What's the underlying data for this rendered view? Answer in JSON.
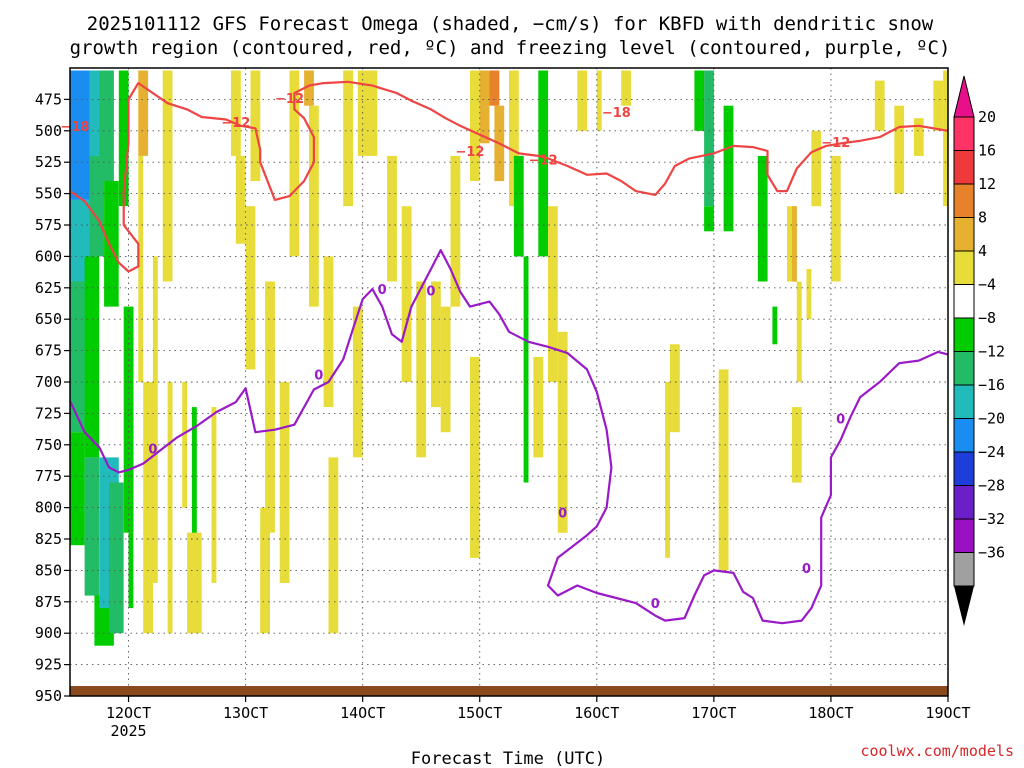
{
  "chart_data": {
    "type": "heatmap",
    "title_line1": "2025101112 GFS Forecast Omega (shaded, −cm/s) for KBFD with dendritic snow",
    "title_line2": "growth region (contoured, red, ºC) and freezing level (contoured, purple, ºC)",
    "xlabel": "Forecast Time (UTC)",
    "credit": "coolwx.com/models",
    "x_ticks": [
      {
        "label": "12OCT",
        "sub": "2025",
        "hour": 0
      },
      {
        "label": "13OCT",
        "sub": "",
        "hour": 24
      },
      {
        "label": "14OCT",
        "sub": "",
        "hour": 48
      },
      {
        "label": "15OCT",
        "sub": "",
        "hour": 72
      },
      {
        "label": "16OCT",
        "sub": "",
        "hour": 96
      },
      {
        "label": "17OCT",
        "sub": "",
        "hour": 120
      },
      {
        "label": "18OCT",
        "sub": "",
        "hour": 144
      },
      {
        "label": "19OCT",
        "sub": "",
        "hour": 168
      }
    ],
    "xlim_hours": [
      -12,
      168
    ],
    "y_ticks": [
      475,
      500,
      525,
      550,
      575,
      600,
      625,
      650,
      675,
      700,
      725,
      750,
      775,
      800,
      825,
      850,
      875,
      900,
      925,
      950
    ],
    "ylim": [
      450,
      950
    ],
    "colorbar": {
      "labels": [
        "20",
        "16",
        "12",
        "8",
        "4",
        "−4",
        "−8",
        "−12",
        "−16",
        "−20",
        "−24",
        "−28",
        "−32",
        "−36"
      ],
      "colors": [
        "#ff3366",
        "#ee3a3a",
        "#e8822a",
        "#e6b030",
        "#e8dc3a",
        "#ffffff",
        "#00cc00",
        "#22bb66",
        "#22bbbb",
        "#1a8ef0",
        "#1e3edb",
        "#6a1fc8",
        "#9a10c4",
        "#a0a0a0"
      ],
      "top_arrow_color": "#e8108a",
      "bottom_arrow_color": "#000000"
    },
    "red_contour": {
      "color": "#ee4444",
      "labels": [
        "−12",
        "−12",
        "−18",
        "−12",
        "−12",
        "−18",
        "−12"
      ],
      "points": [
        [
          -12,
          548
        ],
        [
          -9,
          556
        ],
        [
          -6,
          572
        ],
        [
          -4,
          590
        ],
        [
          -2,
          605
        ],
        [
          0,
          612
        ],
        [
          2,
          608
        ],
        [
          2,
          590
        ],
        [
          -1,
          575
        ],
        [
          -1,
          548
        ],
        [
          0,
          510
        ],
        [
          0,
          475
        ],
        [
          2,
          462
        ],
        [
          5,
          470
        ],
        [
          8,
          478
        ],
        [
          12,
          483
        ],
        [
          15,
          489
        ],
        [
          20,
          491
        ],
        [
          23,
          496
        ],
        [
          26,
          498
        ],
        [
          27,
          515
        ],
        [
          27,
          525
        ],
        [
          28,
          535
        ],
        [
          30,
          555
        ],
        [
          33,
          552
        ],
        [
          36,
          540
        ],
        [
          38,
          525
        ],
        [
          38,
          505
        ],
        [
          36,
          490
        ],
        [
          34,
          483
        ],
        [
          34,
          470
        ],
        [
          37,
          464
        ],
        [
          40,
          462
        ],
        [
          45,
          461
        ],
        [
          50,
          464
        ],
        [
          55,
          470
        ],
        [
          58,
          476
        ],
        [
          62,
          483
        ],
        [
          65,
          490
        ],
        [
          68,
          496
        ],
        [
          72,
          503
        ],
        [
          76,
          510
        ],
        [
          80,
          518
        ],
        [
          84,
          520
        ],
        [
          86,
          522
        ],
        [
          90,
          528
        ],
        [
          94,
          535
        ],
        [
          98,
          534
        ],
        [
          101,
          540
        ],
        [
          104,
          548
        ],
        [
          108,
          551
        ],
        [
          110,
          542
        ],
        [
          112,
          528
        ],
        [
          115,
          522
        ],
        [
          120,
          518
        ],
        [
          124,
          512
        ],
        [
          128,
          513
        ],
        [
          131,
          516
        ],
        [
          131,
          535
        ],
        [
          133,
          548
        ],
        [
          135,
          548
        ],
        [
          137,
          530
        ],
        [
          140,
          517
        ],
        [
          143,
          512
        ],
        [
          146,
          510
        ],
        [
          150,
          508
        ],
        [
          154,
          505
        ],
        [
          158,
          497
        ],
        [
          162,
          496
        ],
        [
          168,
          500
        ]
      ]
    },
    "purple_contour": {
      "color": "#9a1ac8",
      "labels": [
        "0",
        "0",
        "0",
        "0",
        "0",
        "0",
        "0",
        "0"
      ],
      "points": [
        [
          -12,
          715
        ],
        [
          -9,
          740
        ],
        [
          -6,
          752
        ],
        [
          -4,
          768
        ],
        [
          -2,
          772
        ],
        [
          0,
          770
        ],
        [
          3,
          765
        ],
        [
          6,
          756
        ],
        [
          10,
          744
        ],
        [
          14,
          735
        ],
        [
          18,
          724
        ],
        [
          22,
          716
        ],
        [
          24,
          705
        ],
        [
          26,
          740
        ],
        [
          30,
          738
        ],
        [
          34,
          734
        ],
        [
          36,
          720
        ],
        [
          38,
          706
        ],
        [
          41,
          700
        ],
        [
          44,
          682
        ],
        [
          46,
          658
        ],
        [
          48,
          634
        ],
        [
          50,
          626
        ],
        [
          52,
          640
        ],
        [
          54,
          662
        ],
        [
          56,
          668
        ],
        [
          58,
          640
        ],
        [
          60,
          625
        ],
        [
          62,
          610
        ],
        [
          64,
          595
        ],
        [
          66,
          610
        ],
        [
          68,
          628
        ],
        [
          70,
          640
        ],
        [
          74,
          636
        ],
        [
          76,
          646
        ],
        [
          78,
          660
        ],
        [
          82,
          668
        ],
        [
          86,
          672
        ],
        [
          90,
          677
        ],
        [
          94,
          690
        ],
        [
          96,
          708
        ],
        [
          98,
          738
        ],
        [
          99,
          768
        ],
        [
          98,
          800
        ],
        [
          96,
          815
        ],
        [
          94,
          822
        ],
        [
          92,
          828
        ],
        [
          88,
          840
        ],
        [
          86,
          862
        ],
        [
          88,
          870
        ],
        [
          92,
          862
        ],
        [
          96,
          868
        ],
        [
          100,
          872
        ],
        [
          104,
          876
        ],
        [
          108,
          886
        ],
        [
          110,
          890
        ],
        [
          114,
          888
        ],
        [
          116,
          870
        ],
        [
          118,
          854
        ],
        [
          120,
          850
        ],
        [
          124,
          852
        ],
        [
          126,
          867
        ],
        [
          128,
          872
        ],
        [
          130,
          890
        ],
        [
          134,
          892
        ],
        [
          138,
          890
        ],
        [
          140,
          880
        ],
        [
          142,
          862
        ],
        [
          142,
          840
        ],
        [
          142,
          808
        ],
        [
          144,
          790
        ],
        [
          144,
          760
        ],
        [
          146,
          746
        ],
        [
          148,
          728
        ],
        [
          150,
          712
        ],
        [
          154,
          700
        ],
        [
          158,
          685
        ],
        [
          162,
          683
        ],
        [
          166,
          676
        ],
        [
          168,
          678
        ]
      ]
    }
  }
}
